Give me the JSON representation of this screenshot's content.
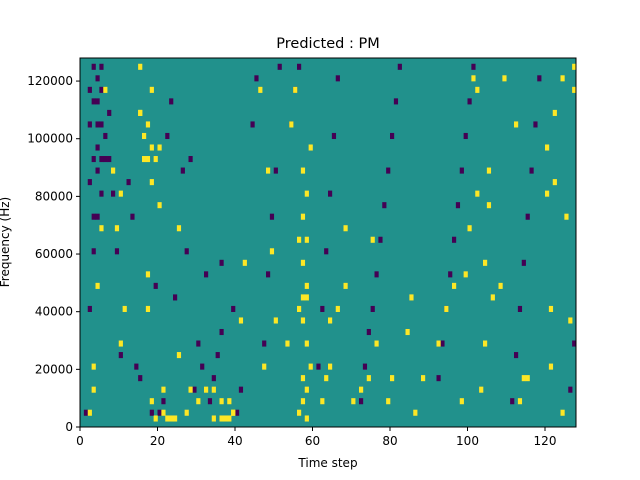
{
  "chart_data": {
    "type": "heatmap",
    "title": "Predicted : PM",
    "xlabel": "Time step",
    "ylabel": "Frequency (Hz)",
    "xlim": [
      0,
      128
    ],
    "ylim": [
      0,
      128000
    ],
    "x_ticks": [
      0,
      20,
      40,
      60,
      80,
      100,
      120
    ],
    "x_tick_labels": [
      "0",
      "20",
      "40",
      "60",
      "80",
      "100",
      "120"
    ],
    "y_ticks": [
      0,
      20000,
      40000,
      60000,
      80000,
      100000,
      120000
    ],
    "y_tick_labels": [
      "0",
      "20000",
      "40000",
      "60000",
      "80000",
      "100000",
      "120000"
    ],
    "grid": false,
    "legend": "none",
    "colormap": "viridis",
    "value_levels": [
      0,
      0.5,
      1
    ],
    "background_value": 0.5,
    "colors": {
      "low": "#440154",
      "mid": "#21918c",
      "high": "#fde725"
    },
    "cell_width_steps": 1,
    "cell_height_hz": 2000,
    "cells_high": [
      [
        2,
        2
      ],
      [
        3,
        6
      ],
      [
        3,
        10
      ],
      [
        4,
        24
      ],
      [
        5,
        34
      ],
      [
        6,
        58
      ],
      [
        7,
        74
      ],
      [
        7,
        108
      ],
      [
        8,
        44
      ],
      [
        8,
        94
      ],
      [
        9,
        34
      ],
      [
        10,
        14
      ],
      [
        10,
        40
      ],
      [
        11,
        20
      ],
      [
        11,
        82
      ],
      [
        15,
        62
      ],
      [
        15,
        54
      ],
      [
        15,
        54
      ],
      [
        16,
        50
      ],
      [
        16,
        46
      ],
      [
        17,
        20
      ],
      [
        17,
        26
      ],
      [
        17,
        52
      ],
      [
        18,
        4
      ],
      [
        18,
        42
      ],
      [
        18,
        58
      ],
      [
        19,
        1
      ],
      [
        19,
        80
      ],
      [
        20,
        38
      ],
      [
        21,
        2
      ],
      [
        21,
        6
      ],
      [
        21,
        92
      ],
      [
        22,
        1
      ],
      [
        22,
        84
      ],
      [
        22,
        90
      ],
      [
        23,
        1
      ],
      [
        24,
        1
      ],
      [
        25,
        12
      ],
      [
        25,
        34
      ],
      [
        27,
        2
      ],
      [
        27,
        94
      ],
      [
        28,
        6
      ],
      [
        29,
        88
      ],
      [
        30,
        4
      ],
      [
        32,
        6
      ],
      [
        34,
        1
      ],
      [
        34,
        6
      ],
      [
        35,
        66
      ],
      [
        36,
        1
      ],
      [
        36,
        4
      ],
      [
        37,
        1
      ],
      [
        38,
        1
      ],
      [
        38,
        4
      ],
      [
        39,
        2
      ],
      [
        39,
        2
      ],
      [
        40,
        110
      ],
      [
        41,
        18
      ],
      [
        42,
        28
      ],
      [
        43,
        76
      ],
      [
        44,
        70
      ],
      [
        45,
        104
      ],
      [
        46,
        58
      ],
      [
        47,
        10
      ],
      [
        48,
        44
      ],
      [
        49,
        30
      ],
      [
        50,
        18
      ],
      [
        51,
        112
      ],
      [
        53,
        14
      ],
      [
        54,
        52
      ],
      [
        55,
        58
      ],
      [
        56,
        2
      ],
      [
        56,
        20
      ],
      [
        56,
        32
      ],
      [
        57,
        4
      ],
      [
        57,
        8
      ],
      [
        57,
        18
      ],
      [
        57,
        22
      ],
      [
        57,
        28
      ],
      [
        57,
        36
      ],
      [
        57,
        44
      ],
      [
        58,
        1
      ],
      [
        58,
        6
      ],
      [
        58,
        14
      ],
      [
        58,
        24
      ],
      [
        58,
        40
      ],
      [
        59,
        10
      ],
      [
        59,
        48
      ],
      [
        60,
        66
      ],
      [
        60,
        80
      ],
      [
        62,
        4
      ],
      [
        63,
        8
      ],
      [
        64,
        10
      ],
      [
        64,
        18
      ],
      [
        66,
        20
      ],
      [
        68,
        24
      ],
      [
        68,
        34
      ],
      [
        70,
        4
      ],
      [
        72,
        6
      ],
      [
        74,
        8
      ],
      [
        75,
        32
      ],
      [
        76,
        14
      ],
      [
        79,
        4
      ],
      [
        80,
        8
      ],
      [
        80,
        100
      ],
      [
        81,
        104
      ],
      [
        84,
        16
      ],
      [
        85,
        22
      ],
      [
        86,
        2
      ],
      [
        88,
        92
      ],
      [
        88,
        8
      ],
      [
        90,
        100
      ],
      [
        92,
        14
      ],
      [
        94,
        20
      ],
      [
        96,
        24
      ],
      [
        98,
        4
      ],
      [
        99,
        26
      ],
      [
        100,
        34
      ],
      [
        101,
        60
      ],
      [
        102,
        58
      ],
      [
        102,
        40
      ],
      [
        103,
        6
      ],
      [
        104,
        14
      ],
      [
        104,
        28
      ],
      [
        105,
        38
      ],
      [
        105,
        44
      ],
      [
        106,
        22
      ],
      [
        107,
        80
      ],
      [
        107,
        84
      ],
      [
        108,
        24
      ],
      [
        109,
        60
      ],
      [
        110,
        88
      ],
      [
        112,
        52
      ],
      [
        113,
        4
      ],
      [
        114,
        8
      ],
      [
        115,
        8
      ],
      [
        116,
        78
      ],
      [
        117,
        70
      ],
      [
        118,
        96
      ],
      [
        119,
        64
      ],
      [
        120,
        40
      ],
      [
        120,
        48
      ],
      [
        121,
        10
      ],
      [
        121,
        20
      ],
      [
        121,
        114
      ],
      [
        122,
        54
      ],
      [
        122,
        42
      ],
      [
        123,
        104
      ],
      [
        123,
        108
      ],
      [
        124,
        2
      ],
      [
        124,
        60
      ],
      [
        125,
        36
      ],
      [
        126,
        18
      ],
      [
        127,
        62
      ],
      [
        127,
        58
      ],
      [
        17,
        46
      ],
      [
        18,
        48
      ],
      [
        19,
        46
      ],
      [
        20,
        48
      ],
      [
        58,
        22
      ],
      [
        58,
        32
      ]
    ],
    "cells_low": [
      [
        1,
        2
      ],
      [
        2,
        20
      ],
      [
        2,
        42
      ],
      [
        2,
        52
      ],
      [
        2,
        58
      ],
      [
        3,
        30
      ],
      [
        3,
        36
      ],
      [
        3,
        46
      ],
      [
        3,
        56
      ],
      [
        3,
        62
      ],
      [
        3,
        64
      ],
      [
        3,
        68
      ],
      [
        4,
        36
      ],
      [
        4,
        44
      ],
      [
        4,
        48
      ],
      [
        4,
        52
      ],
      [
        4,
        56
      ],
      [
        4,
        60
      ],
      [
        4,
        64
      ],
      [
        5,
        40
      ],
      [
        5,
        46
      ],
      [
        5,
        52
      ],
      [
        5,
        58
      ],
      [
        5,
        62
      ],
      [
        6,
        46
      ],
      [
        6,
        50
      ],
      [
        7,
        46
      ],
      [
        7,
        54
      ],
      [
        8,
        40
      ],
      [
        9,
        30
      ],
      [
        10,
        12
      ],
      [
        12,
        42
      ],
      [
        13,
        36
      ],
      [
        14,
        10
      ],
      [
        15,
        8
      ],
      [
        17,
        68
      ],
      [
        17,
        92
      ],
      [
        18,
        2
      ],
      [
        19,
        24
      ],
      [
        20,
        2
      ],
      [
        21,
        4
      ],
      [
        22,
        50
      ],
      [
        23,
        56
      ],
      [
        24,
        22
      ],
      [
        25,
        114
      ],
      [
        26,
        44
      ],
      [
        27,
        30
      ],
      [
        28,
        46
      ],
      [
        29,
        6
      ],
      [
        30,
        14
      ],
      [
        31,
        10
      ],
      [
        32,
        26
      ],
      [
        33,
        4
      ],
      [
        34,
        8
      ],
      [
        35,
        12
      ],
      [
        36,
        16
      ],
      [
        36,
        28
      ],
      [
        37,
        78
      ],
      [
        38,
        82
      ],
      [
        39,
        20
      ],
      [
        40,
        2
      ],
      [
        41,
        6
      ],
      [
        42,
        70
      ],
      [
        43,
        88
      ],
      [
        44,
        52
      ],
      [
        45,
        60
      ],
      [
        46,
        96
      ],
      [
        47,
        14
      ],
      [
        48,
        26
      ],
      [
        49,
        36
      ],
      [
        50,
        44
      ],
      [
        51,
        62
      ],
      [
        52,
        68
      ],
      [
        53,
        76
      ],
      [
        54,
        52
      ],
      [
        55,
        58
      ],
      [
        56,
        62
      ],
      [
        57,
        66
      ],
      [
        58,
        70
      ],
      [
        59,
        74
      ],
      [
        60,
        78
      ],
      [
        61,
        10
      ],
      [
        62,
        20
      ],
      [
        63,
        30
      ],
      [
        64,
        40
      ],
      [
        65,
        50
      ],
      [
        66,
        60
      ],
      [
        67,
        70
      ],
      [
        68,
        80
      ],
      [
        69,
        90
      ],
      [
        70,
        100
      ],
      [
        71,
        110
      ],
      [
        72,
        4
      ],
      [
        73,
        10
      ],
      [
        74,
        16
      ],
      [
        75,
        20
      ],
      [
        76,
        26
      ],
      [
        77,
        32
      ],
      [
        78,
        38
      ],
      [
        79,
        44
      ],
      [
        80,
        50
      ],
      [
        81,
        56
      ],
      [
        82,
        62
      ],
      [
        83,
        68
      ],
      [
        84,
        74
      ],
      [
        85,
        80
      ],
      [
        86,
        86
      ],
      [
        87,
        92
      ],
      [
        88,
        98
      ],
      [
        89,
        104
      ],
      [
        90,
        110
      ],
      [
        91,
        116
      ],
      [
        92,
        8
      ],
      [
        93,
        14
      ],
      [
        94,
        20
      ],
      [
        95,
        26
      ],
      [
        96,
        32
      ],
      [
        97,
        38
      ],
      [
        98,
        44
      ],
      [
        99,
        50
      ],
      [
        100,
        56
      ],
      [
        101,
        62
      ],
      [
        102,
        68
      ],
      [
        103,
        74
      ],
      [
        104,
        80
      ],
      [
        105,
        86
      ],
      [
        106,
        92
      ],
      [
        107,
        98
      ],
      [
        108,
        104
      ],
      [
        109,
        110
      ],
      [
        110,
        116
      ],
      [
        111,
        4
      ],
      [
        112,
        12
      ],
      [
        113,
        20
      ],
      [
        114,
        28
      ],
      [
        115,
        36
      ],
      [
        116,
        44
      ],
      [
        117,
        52
      ],
      [
        118,
        60
      ],
      [
        119,
        68
      ],
      [
        120,
        76
      ],
      [
        121,
        84
      ],
      [
        122,
        92
      ],
      [
        123,
        100
      ],
      [
        124,
        108
      ],
      [
        125,
        116
      ],
      [
        126,
        6
      ],
      [
        127,
        14
      ]
    ]
  }
}
